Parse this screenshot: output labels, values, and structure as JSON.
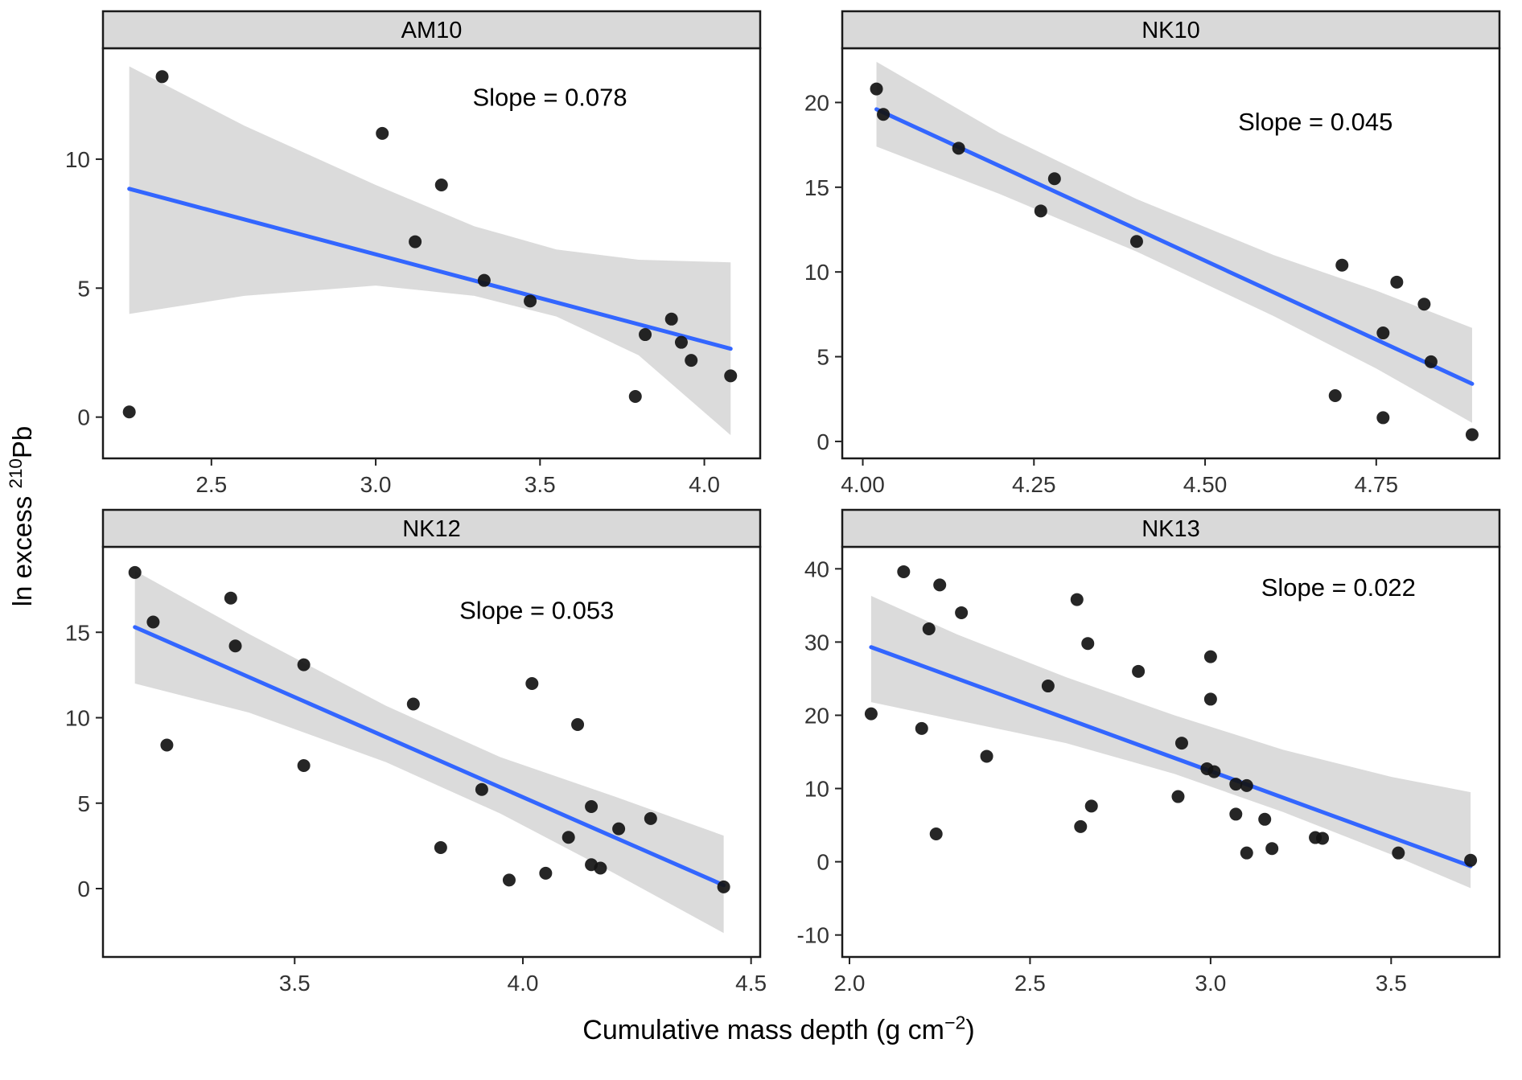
{
  "figure": {
    "x_axis_label": {
      "prefix": "Cumulative mass depth (g cm",
      "sup": "−2",
      "suffix": ")"
    },
    "y_axis_label": {
      "prefix": "ln excess ",
      "sup": "210",
      "suffix": "Pb"
    }
  },
  "style": {
    "line_color": "#3366FF",
    "ribbon_color": "#999999",
    "ribbon_opacity": 0.35,
    "point_color": "#141414",
    "point_opacity": 0.92,
    "strip_bg": "#d9d9d9",
    "border_color": "#1a1a1a",
    "tick_label_color": "#333333",
    "annotation_color": "#000000"
  },
  "chart_data": [
    {
      "type": "scatter",
      "title": "AM10",
      "annotation": "Slope = 0.078",
      "annotation_pos": {
        "fx": 0.68,
        "fy": 0.14
      },
      "xlim": [
        2.17,
        4.17
      ],
      "ylim": [
        -1.6,
        14.3
      ],
      "xticks": [
        {
          "v": 2.5,
          "label": "2.5"
        },
        {
          "v": 3.0,
          "label": "3.0"
        },
        {
          "v": 3.5,
          "label": "3.5"
        },
        {
          "v": 4.0,
          "label": "4.0"
        }
      ],
      "yticks": [
        {
          "v": 0,
          "label": "0"
        },
        {
          "v": 5,
          "label": "5"
        },
        {
          "v": 10,
          "label": "10"
        }
      ],
      "points": [
        [
          2.25,
          0.2
        ],
        [
          2.35,
          13.2
        ],
        [
          3.02,
          11.0
        ],
        [
          3.12,
          6.8
        ],
        [
          3.2,
          9.0
        ],
        [
          3.33,
          5.3
        ],
        [
          3.47,
          4.5
        ],
        [
          3.79,
          0.8
        ],
        [
          3.82,
          3.2
        ],
        [
          3.9,
          3.8
        ],
        [
          3.93,
          2.9
        ],
        [
          3.96,
          2.2
        ],
        [
          4.08,
          1.6
        ]
      ],
      "regression": {
        "x1": 2.25,
        "y1": 8.85,
        "x2": 4.08,
        "y2": 2.65
      },
      "ribbon": {
        "x": [
          2.25,
          2.6,
          3.0,
          3.3,
          3.55,
          3.8,
          4.08
        ],
        "upper": [
          13.6,
          11.3,
          9.0,
          7.4,
          6.5,
          6.1,
          6.0
        ],
        "lower": [
          4.0,
          4.7,
          5.1,
          4.7,
          3.9,
          2.4,
          -0.7
        ]
      }
    },
    {
      "type": "scatter",
      "title": "NK10",
      "annotation": "Slope = 0.045",
      "annotation_pos": {
        "fx": 0.72,
        "fy": 0.2
      },
      "xlim": [
        3.97,
        4.93
      ],
      "ylim": [
        -1.0,
        23.2
      ],
      "xticks": [
        {
          "v": 4.0,
          "label": "4.00"
        },
        {
          "v": 4.25,
          "label": "4.25"
        },
        {
          "v": 4.5,
          "label": "4.50"
        },
        {
          "v": 4.75,
          "label": "4.75"
        }
      ],
      "yticks": [
        {
          "v": 0,
          "label": "0"
        },
        {
          "v": 5,
          "label": "5"
        },
        {
          "v": 10,
          "label": "10"
        },
        {
          "v": 15,
          "label": "15"
        },
        {
          "v": 20,
          "label": "20"
        }
      ],
      "points": [
        [
          4.02,
          20.8
        ],
        [
          4.03,
          19.3
        ],
        [
          4.14,
          17.3
        ],
        [
          4.26,
          13.6
        ],
        [
          4.28,
          15.5
        ],
        [
          4.4,
          11.8
        ],
        [
          4.69,
          2.7
        ],
        [
          4.7,
          10.4
        ],
        [
          4.76,
          6.4
        ],
        [
          4.78,
          9.4
        ],
        [
          4.82,
          8.1
        ],
        [
          4.83,
          4.7
        ],
        [
          4.76,
          1.4
        ],
        [
          4.89,
          0.4
        ]
      ],
      "regression": {
        "x1": 4.02,
        "y1": 19.6,
        "x2": 4.89,
        "y2": 3.4
      },
      "ribbon": {
        "x": [
          4.02,
          4.2,
          4.4,
          4.6,
          4.75,
          4.89
        ],
        "upper": [
          22.4,
          18.2,
          14.3,
          11.0,
          8.9,
          6.7
        ],
        "lower": [
          17.4,
          14.6,
          11.2,
          7.4,
          4.3,
          1.1
        ]
      }
    },
    {
      "type": "scatter",
      "title": "NK12",
      "annotation": "Slope = 0.053",
      "annotation_pos": {
        "fx": 0.66,
        "fy": 0.175
      },
      "xlim": [
        3.08,
        4.52
      ],
      "ylim": [
        -4.0,
        20.0
      ],
      "xticks": [
        {
          "v": 3.5,
          "label": "3.5"
        },
        {
          "v": 4.0,
          "label": "4.0"
        },
        {
          "v": 4.5,
          "label": "4.5"
        }
      ],
      "yticks": [
        {
          "v": 0,
          "label": "0"
        },
        {
          "v": 5,
          "label": "5"
        },
        {
          "v": 10,
          "label": "10"
        },
        {
          "v": 15,
          "label": "15"
        }
      ],
      "points": [
        [
          3.15,
          18.5
        ],
        [
          3.19,
          15.6
        ],
        [
          3.22,
          8.4
        ],
        [
          3.36,
          17.0
        ],
        [
          3.37,
          14.2
        ],
        [
          3.52,
          13.1
        ],
        [
          3.52,
          7.2
        ],
        [
          3.76,
          10.8
        ],
        [
          3.82,
          2.4
        ],
        [
          3.91,
          5.8
        ],
        [
          3.97,
          0.5
        ],
        [
          4.02,
          12.0
        ],
        [
          4.05,
          0.9
        ],
        [
          4.1,
          3.0
        ],
        [
          4.12,
          9.6
        ],
        [
          4.15,
          4.8
        ],
        [
          4.15,
          1.4
        ],
        [
          4.17,
          1.2
        ],
        [
          4.21,
          3.5
        ],
        [
          4.28,
          4.1
        ],
        [
          4.44,
          0.1
        ]
      ],
      "regression": {
        "x1": 3.15,
        "y1": 15.3,
        "x2": 4.44,
        "y2": 0.2
      },
      "ribbon": {
        "x": [
          3.15,
          3.4,
          3.7,
          3.95,
          4.2,
          4.44
        ],
        "upper": [
          18.6,
          14.9,
          10.7,
          7.7,
          5.4,
          3.1
        ],
        "lower": [
          12.0,
          10.3,
          7.4,
          4.4,
          0.9,
          -2.6
        ]
      }
    },
    {
      "type": "scatter",
      "title": "NK13",
      "annotation": "Slope = 0.022",
      "annotation_pos": {
        "fx": 0.755,
        "fy": 0.12
      },
      "xlim": [
        1.98,
        3.8
      ],
      "ylim": [
        -13,
        43
      ],
      "xticks": [
        {
          "v": 2.0,
          "label": "2.0"
        },
        {
          "v": 2.5,
          "label": "2.5"
        },
        {
          "v": 3.0,
          "label": "3.0"
        },
        {
          "v": 3.5,
          "label": "3.5"
        }
      ],
      "yticks": [
        {
          "v": -10,
          "label": "-10"
        },
        {
          "v": 0,
          "label": "0"
        },
        {
          "v": 10,
          "label": "10"
        },
        {
          "v": 20,
          "label": "20"
        },
        {
          "v": 30,
          "label": "30"
        },
        {
          "v": 40,
          "label": "40"
        }
      ],
      "points": [
        [
          2.06,
          20.2
        ],
        [
          2.15,
          39.6
        ],
        [
          2.2,
          18.2
        ],
        [
          2.22,
          31.8
        ],
        [
          2.24,
          3.8
        ],
        [
          2.25,
          37.8
        ],
        [
          2.31,
          34.0
        ],
        [
          2.38,
          14.4
        ],
        [
          2.55,
          24.0
        ],
        [
          2.63,
          35.8
        ],
        [
          2.64,
          4.8
        ],
        [
          2.66,
          29.8
        ],
        [
          2.67,
          7.6
        ],
        [
          2.8,
          26.0
        ],
        [
          2.91,
          8.9
        ],
        [
          2.92,
          16.2
        ],
        [
          2.99,
          12.7
        ],
        [
          3.01,
          12.3
        ],
        [
          3.0,
          28.0
        ],
        [
          3.0,
          22.2
        ],
        [
          3.07,
          10.6
        ],
        [
          3.1,
          10.4
        ],
        [
          3.07,
          6.5
        ],
        [
          3.1,
          1.2
        ],
        [
          3.17,
          1.8
        ],
        [
          3.15,
          5.8
        ],
        [
          3.29,
          3.3
        ],
        [
          3.31,
          3.2
        ],
        [
          3.52,
          1.2
        ],
        [
          3.72,
          0.2
        ]
      ],
      "regression": {
        "x1": 2.06,
        "y1": 29.3,
        "x2": 3.72,
        "y2": -0.6
      },
      "ribbon": {
        "x": [
          2.06,
          2.3,
          2.6,
          2.9,
          3.2,
          3.5,
          3.72
        ],
        "upper": [
          36.3,
          31.0,
          25.2,
          20.0,
          15.3,
          11.6,
          9.5
        ],
        "lower": [
          21.8,
          19.3,
          16.2,
          12.0,
          6.8,
          1.0,
          -3.6
        ]
      }
    }
  ]
}
